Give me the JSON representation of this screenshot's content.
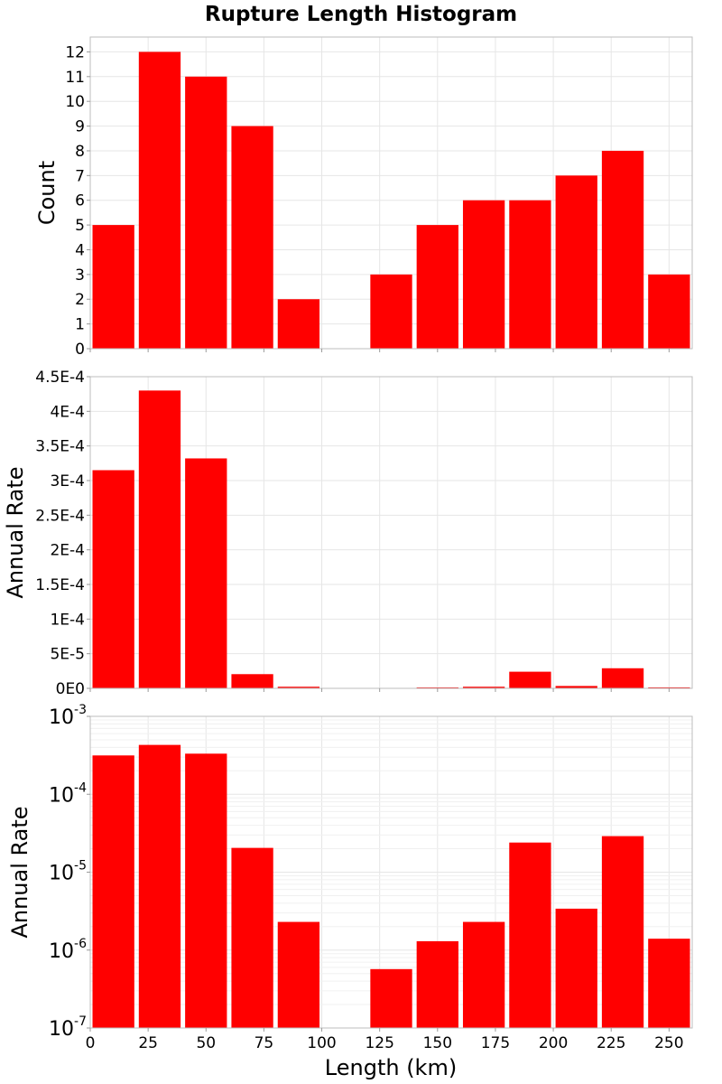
{
  "chart_data": {
    "type": "bar",
    "title": "Rupture Length Histogram",
    "bar_color": "#ff0000",
    "x_axis": {
      "label": "Length (km)",
      "range": [
        0,
        260
      ],
      "ticks": [
        0,
        25,
        50,
        75,
        100,
        125,
        150,
        175,
        200,
        225,
        250
      ],
      "tick_labels": [
        "0",
        "25",
        "50",
        "75",
        "100",
        "125",
        "150",
        "175",
        "200",
        "225",
        "250"
      ]
    },
    "bins": {
      "centers": [
        10,
        30,
        50,
        70,
        90,
        110,
        130,
        150,
        170,
        190,
        210,
        230,
        250
      ],
      "width": 20
    },
    "panels": [
      {
        "id": "count",
        "ylabel": "Count",
        "scale": "linear",
        "ylim": [
          0,
          12.6
        ],
        "yticks": [
          0,
          1,
          2,
          3,
          4,
          5,
          6,
          7,
          8,
          9,
          10,
          11,
          12
        ],
        "ytick_labels": [
          "0",
          "1",
          "2",
          "3",
          "4",
          "5",
          "6",
          "7",
          "8",
          "9",
          "10",
          "11",
          "12"
        ],
        "values": [
          5,
          12,
          11,
          9,
          2,
          0,
          3,
          5,
          6,
          6,
          7,
          8,
          3
        ]
      },
      {
        "id": "rate-linear",
        "ylabel": "Annual Rate",
        "scale": "linear",
        "ylim": [
          0,
          0.00045
        ],
        "yticks": [
          0,
          5e-05,
          0.0001,
          0.00015,
          0.0002,
          0.00025,
          0.0003,
          0.00035,
          0.0004,
          0.00045
        ],
        "ytick_labels": [
          "0E0",
          "5E-5",
          "1E-4",
          "1.5E-4",
          "2E-4",
          "2.5E-4",
          "3E-4",
          "3.5E-4",
          "4E-4",
          "4.5E-4"
        ],
        "values": [
          0.000315,
          0.00043,
          0.000332,
          2.05e-05,
          2.3e-06,
          0,
          5.7e-07,
          1.3e-06,
          2.3e-06,
          2.4e-05,
          3.4e-06,
          2.9e-05,
          1.4e-06
        ]
      },
      {
        "id": "rate-log",
        "ylabel": "Annual Rate",
        "scale": "log",
        "ylim": [
          1e-07,
          0.001
        ],
        "yticks": [
          1e-07,
          1e-06,
          1e-05,
          0.0001,
          0.001
        ],
        "ytick_base": "10",
        "ytick_exponents": [
          "-7",
          "-6",
          "-5",
          "-4",
          "-3"
        ],
        "values": [
          0.000315,
          0.00043,
          0.000332,
          2.05e-05,
          2.3e-06,
          0,
          5.7e-07,
          1.3e-06,
          2.3e-06,
          2.4e-05,
          3.4e-06,
          2.9e-05,
          1.4e-06
        ]
      }
    ]
  }
}
